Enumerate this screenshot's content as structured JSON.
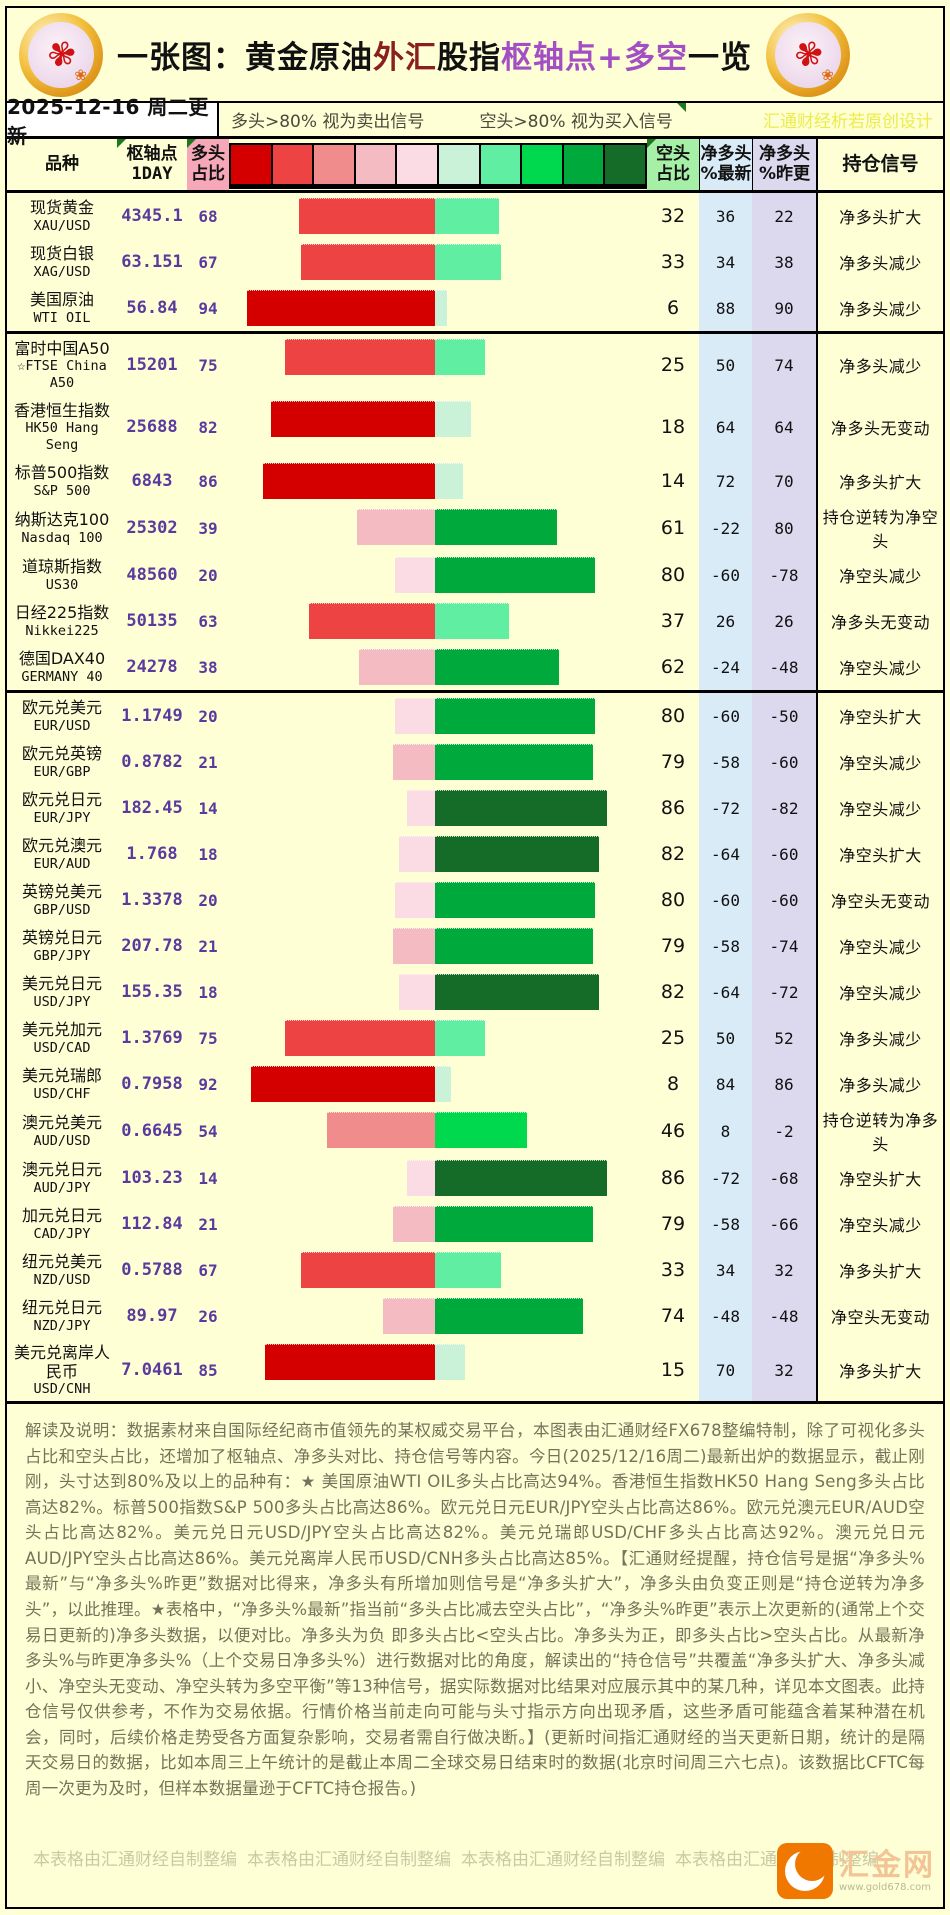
{
  "title": {
    "parts": [
      {
        "text": "一张图：黄金原油",
        "color": "#111111"
      },
      {
        "text": "外汇",
        "color": "#8b1e1e"
      },
      {
        "text": "股指",
        "color": "#111111"
      },
      {
        "text": "枢轴点+多空",
        "color": "#a34fc3"
      },
      {
        "text": "一览",
        "color": "#111111"
      }
    ]
  },
  "date_bar": {
    "date": "2025-12-16 周二更新",
    "rule_long": "多头>80% 视为卖出信号",
    "rule_short": "空头>80% 视为买入信号",
    "watermark": "汇通财经析若原创设计"
  },
  "table": {
    "headers": {
      "product": "品种",
      "pivot_line1": "枢轴点",
      "pivot_line2": "1DAY",
      "long_line1": "多头",
      "long_line2": "占比",
      "short_line1": "空头",
      "short_line2": "占比",
      "net_latest_line1": "净多头",
      "net_latest_line2": "%最新",
      "net_prev_line1": "净多头",
      "net_prev_line2": "%昨更",
      "signal": "持仓信号"
    }
  },
  "chart_data": {
    "type": "bar",
    "orientation": "diverging-horizontal",
    "series": [
      {
        "name": "多头占比",
        "side": "left",
        "palette": "red"
      },
      {
        "name": "空头占比",
        "side": "right",
        "palette": "green"
      }
    ],
    "color_scale_red": [
      "#d40000",
      "#ee4343",
      "#f18c8c",
      "#f4bcc2",
      "#fbdce4"
    ],
    "color_scale_green": [
      "#c9f2d9",
      "#5feea2",
      "#00d94e",
      "#00a93c",
      "#156b28"
    ],
    "axis_range": [
      0,
      100
    ],
    "rows": [
      {
        "name": "现货黄金",
        "symbol": "XAU/USD",
        "pivot": "4345.1",
        "long": 68,
        "short": 32,
        "net_latest": 36,
        "net_prev": 22,
        "signal": "净多头扩大",
        "group": "commodity",
        "tall": false
      },
      {
        "name": "现货白银",
        "symbol": "XAG/USD",
        "pivot": "63.151",
        "long": 67,
        "short": 33,
        "net_latest": 34,
        "net_prev": 38,
        "signal": "净多头减少",
        "group": "commodity",
        "tall": false
      },
      {
        "name": "美国原油",
        "symbol": "WTI OIL",
        "pivot": "56.84",
        "long": 94,
        "short": 6,
        "net_latest": 88,
        "net_prev": 90,
        "signal": "净多头减少",
        "group": "commodity",
        "tall": false
      },
      {
        "name": "富时中国A50",
        "symbol": "☆FTSE China A50",
        "pivot": "15201",
        "long": 75,
        "short": 25,
        "net_latest": 50,
        "net_prev": 74,
        "signal": "净多头减少",
        "group": "index",
        "tall": true
      },
      {
        "name": "香港恒生指数",
        "symbol": "HK50 Hang Seng",
        "pivot": "25688",
        "long": 82,
        "short": 18,
        "net_latest": 64,
        "net_prev": 64,
        "signal": "净多头无变动",
        "group": "index",
        "tall": true
      },
      {
        "name": "标普500指数",
        "symbol": "S&P 500",
        "pivot": "6843",
        "long": 86,
        "short": 14,
        "net_latest": 72,
        "net_prev": 70,
        "signal": "净多头扩大",
        "group": "index",
        "tall": false
      },
      {
        "name": "纳斯达克100",
        "symbol": "Nasdaq 100",
        "pivot": "25302",
        "long": 39,
        "short": 61,
        "net_latest": -22,
        "net_prev": 80,
        "signal": "持仓逆转为净空头",
        "group": "index",
        "tall": false
      },
      {
        "name": "道琼斯指数",
        "symbol": "US30",
        "pivot": "48560",
        "long": 20,
        "short": 80,
        "net_latest": -60,
        "net_prev": -78,
        "signal": "净空头减少",
        "group": "index",
        "tall": false
      },
      {
        "name": "日经225指数",
        "symbol": "Nikkei225",
        "pivot": "50135",
        "long": 63,
        "short": 37,
        "net_latest": 26,
        "net_prev": 26,
        "signal": "净多头无变动",
        "group": "index",
        "tall": false
      },
      {
        "name": "德国DAX40",
        "symbol": "GERMANY 40",
        "pivot": "24278",
        "long": 38,
        "short": 62,
        "net_latest": -24,
        "net_prev": -48,
        "signal": "净空头减少",
        "group": "index",
        "tall": false
      },
      {
        "name": "欧元兑美元",
        "symbol": "EUR/USD",
        "pivot": "1.1749",
        "long": 20,
        "short": 80,
        "net_latest": -60,
        "net_prev": -50,
        "signal": "净空头扩大",
        "group": "forex",
        "tall": false
      },
      {
        "name": "欧元兑英镑",
        "symbol": "EUR/GBP",
        "pivot": "0.8782",
        "long": 21,
        "short": 79,
        "net_latest": -58,
        "net_prev": -60,
        "signal": "净空头减少",
        "group": "forex",
        "tall": false
      },
      {
        "name": "欧元兑日元",
        "symbol": "EUR/JPY",
        "pivot": "182.45",
        "long": 14,
        "short": 86,
        "net_latest": -72,
        "net_prev": -82,
        "signal": "净空头减少",
        "group": "forex",
        "tall": false
      },
      {
        "name": "欧元兑澳元",
        "symbol": "EUR/AUD",
        "pivot": "1.768",
        "long": 18,
        "short": 82,
        "net_latest": -64,
        "net_prev": -60,
        "signal": "净空头扩大",
        "group": "forex",
        "tall": false
      },
      {
        "name": "英镑兑美元",
        "symbol": "GBP/USD",
        "pivot": "1.3378",
        "long": 20,
        "short": 80,
        "net_latest": -60,
        "net_prev": -60,
        "signal": "净空头无变动",
        "group": "forex",
        "tall": false
      },
      {
        "name": "英镑兑日元",
        "symbol": "GBP/JPY",
        "pivot": "207.78",
        "long": 21,
        "short": 79,
        "net_latest": -58,
        "net_prev": -74,
        "signal": "净空头减少",
        "group": "forex",
        "tall": false
      },
      {
        "name": "美元兑日元",
        "symbol": "USD/JPY",
        "pivot": "155.35",
        "long": 18,
        "short": 82,
        "net_latest": -64,
        "net_prev": -72,
        "signal": "净空头减少",
        "group": "forex",
        "tall": false
      },
      {
        "name": "美元兑加元",
        "symbol": "USD/CAD",
        "pivot": "1.3769",
        "long": 75,
        "short": 25,
        "net_latest": 50,
        "net_prev": 52,
        "signal": "净多头减少",
        "group": "forex",
        "tall": false
      },
      {
        "name": "美元兑瑞郎",
        "symbol": "USD/CHF",
        "pivot": "0.7958",
        "long": 92,
        "short": 8,
        "net_latest": 84,
        "net_prev": 86,
        "signal": "净多头减少",
        "group": "forex",
        "tall": false
      },
      {
        "name": "澳元兑美元",
        "symbol": "AUD/USD",
        "pivot": "0.6645",
        "long": 54,
        "short": 46,
        "net_latest": 8,
        "net_prev": -2,
        "signal": "持仓逆转为净多头",
        "group": "forex",
        "tall": false
      },
      {
        "name": "澳元兑日元",
        "symbol": "AUD/JPY",
        "pivot": "103.23",
        "long": 14,
        "short": 86,
        "net_latest": -72,
        "net_prev": -68,
        "signal": "净空头扩大",
        "group": "forex",
        "tall": false
      },
      {
        "name": "加元兑日元",
        "symbol": "CAD/JPY",
        "pivot": "112.84",
        "long": 21,
        "short": 79,
        "net_latest": -58,
        "net_prev": -66,
        "signal": "净空头减少",
        "group": "forex",
        "tall": false
      },
      {
        "name": "纽元兑美元",
        "symbol": "NZD/USD",
        "pivot": "0.5788",
        "long": 67,
        "short": 33,
        "net_latest": 34,
        "net_prev": 32,
        "signal": "净多头扩大",
        "group": "forex",
        "tall": false
      },
      {
        "name": "纽元兑日元",
        "symbol": "NZD/JPY",
        "pivot": "89.97",
        "long": 26,
        "short": 74,
        "net_latest": -48,
        "net_prev": -48,
        "signal": "净空头无变动",
        "group": "forex",
        "tall": false
      },
      {
        "name": "美元兑离岸人民币",
        "symbol": "USD/CNH",
        "pivot": "7.0461",
        "long": 85,
        "short": 15,
        "net_latest": 70,
        "net_prev": 32,
        "signal": "净多头扩大",
        "group": "forex",
        "tall": true
      }
    ],
    "group_separators_after": [
      2,
      9
    ]
  },
  "explanation": "解读及说明：数据素材来自国际经纪商市值领先的某权威交易平台，本图表由汇通财经FX678整编特制，除了可视化多头占比和空头占比，还增加了枢轴点、净多头对比、持仓信号等内容。今日(2025/12/16周二)最新出炉的数据显示，截止刚刚，头寸达到80%及以上的品种有：★ 美国原油WTI OIL多头占比高达94%。香港恒生指数HK50 Hang Seng多头占比高达82%。标普500指数S&P 500多头占比高达86%。欧元兑日元EUR/JPY空头占比高达86%。欧元兑澳元EUR/AUD空头占比高达82%。美元兑日元USD/JPY空头占比高达82%。美元兑瑞郎USD/CHF多头占比高达92%。澳元兑日元AUD/JPY空头占比高达86%。美元兑离岸人民币USD/CNH多头占比高达85%。【汇通财经提醒，持仓信号是据“净多头%最新”与“净多头%昨更”数据对比得来，净多头有所增加则信号是“净多头扩大”，净多头由负变正则是“持仓逆转为净多头”，以此推理。★表格中，“净多头%最新”指当前“多头占比减去空头占比”，“净多头%昨更”表示上次更新的(通常上个交易日更新的)净多头数据，以便对比。净多头为负 即多头占比<空头占比。净多头为正，即多头占比>空头占比。从最新净多头%与昨更净多头%（上个交易日净多头%）进行数据对比的角度，解读出的“持仓信号”共覆盖“净多头扩大、净多头减小、净空头无变动、净空头转为多空平衡”等13种信号，据实际数据对比结果对应展示其中的某几种，详见本文图表。此持仓信号仅供参考，不作为交易依据。行情价格当前走向可能与头寸指示方向出现矛盾，这些矛盾可能蕴含着某种潜在机会，同时，后续价格走势受各方面复杂影响，交易者需自行做决断。】(更新时间指汇通财经的当天更新日期，统计的是隔天交易日的数据，比如本周三上午统计的是截止本周二全球交易日结束时的数据(北京时间周三六七点)。该数据比CFTC每周一次更为及时，但样本数据量逊于CFTC持仓报告。)",
  "footer": {
    "credit": "本表格由汇通财经自制整编",
    "logo_text": "汇金网",
    "logo_url": "www.gold678.com"
  }
}
